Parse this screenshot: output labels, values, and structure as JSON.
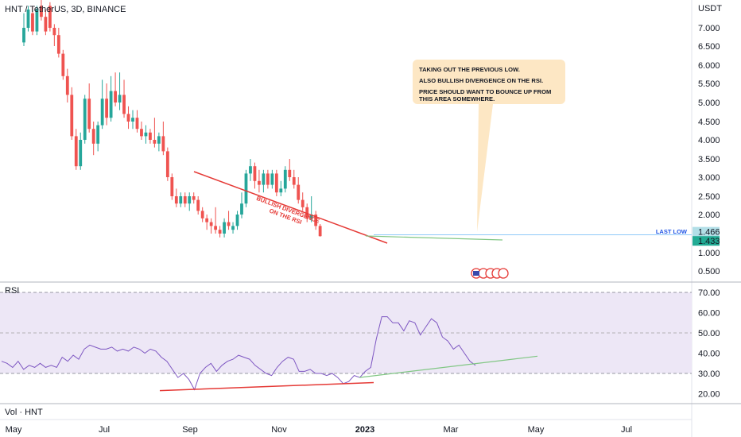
{
  "header": {
    "symbol_line": "HNT / TetherUS, 3D, BINANCE",
    "currency": "USDT"
  },
  "price_axis": {
    "ticks": [
      "7.000",
      "6.500",
      "6.000",
      "5.500",
      "5.000",
      "4.500",
      "4.000",
      "3.500",
      "3.000",
      "2.500",
      "2.000",
      "1.000",
      "0.500"
    ],
    "tags": [
      {
        "value": "1.466",
        "color": "#b2dfe7"
      },
      {
        "value": "1.433",
        "color": "#22ab94"
      }
    ]
  },
  "annotations": {
    "divergence_label": [
      "BULLISH DIVERGENCE",
      "ON THE RSI"
    ],
    "last_low_label": "LAST LOW",
    "callout": [
      "TAKING OUT THE PREVIOUS LOW.",
      "ALSO BULLISH DIVERGENCE ON THE RSI.",
      "PRICE SHOULD WANT TO BOUNCE UP FROM THIS AREA SOMEWHERE."
    ]
  },
  "rsi_panel": {
    "title": "RSI",
    "ticks": [
      "70.00",
      "60.00",
      "50.00",
      "40.00",
      "30.00",
      "20.00"
    ]
  },
  "volume_panel": {
    "title": "Vol · HNT"
  },
  "time_axis": {
    "labels": [
      "May",
      "Jul",
      "Sep",
      "Nov",
      "2023",
      "Mar",
      "May",
      "Jul"
    ]
  },
  "colors": {
    "up": "#26a69a",
    "down": "#ef5350",
    "rsi_line": "#7e57c2",
    "rsi_band": "#ede7f6",
    "divergence_red": "#e53935",
    "divergence_green": "#81c784",
    "last_low_line": "#90caf9",
    "callout_bg": "#fde7c4"
  },
  "chart_data": [
    {
      "type": "candlestick",
      "title": "HNT / TetherUS, 3D, BINANCE",
      "ylabel": "USDT",
      "ylim": [
        0.5,
        7.5
      ],
      "note": "approximate 3-day candles read off the chart",
      "candles": [
        {
          "o": 6.6,
          "h": 7.4,
          "l": 6.5,
          "c": 7.0
        },
        {
          "o": 7.0,
          "h": 7.6,
          "l": 6.9,
          "c": 7.5
        },
        {
          "o": 7.4,
          "h": 7.6,
          "l": 6.8,
          "c": 6.9
        },
        {
          "o": 6.9,
          "h": 7.6,
          "l": 6.8,
          "c": 7.5
        },
        {
          "o": 7.6,
          "h": 7.8,
          "l": 7.2,
          "c": 7.3
        },
        {
          "o": 7.3,
          "h": 7.5,
          "l": 6.8,
          "c": 6.9
        },
        {
          "o": 7.6,
          "h": 7.7,
          "l": 6.9,
          "c": 7.0
        },
        {
          "o": 7.0,
          "h": 7.1,
          "l": 6.5,
          "c": 6.8
        },
        {
          "o": 6.8,
          "h": 7.0,
          "l": 6.2,
          "c": 6.3
        },
        {
          "o": 6.3,
          "h": 6.4,
          "l": 5.6,
          "c": 5.7
        },
        {
          "o": 5.7,
          "h": 5.9,
          "l": 5.0,
          "c": 5.2
        },
        {
          "o": 5.2,
          "h": 5.4,
          "l": 4.0,
          "c": 4.1
        },
        {
          "o": 4.1,
          "h": 4.3,
          "l": 3.2,
          "c": 3.3
        },
        {
          "o": 3.3,
          "h": 4.2,
          "l": 3.2,
          "c": 4.0
        },
        {
          "o": 4.0,
          "h": 5.2,
          "l": 3.9,
          "c": 5.1
        },
        {
          "o": 5.1,
          "h": 5.5,
          "l": 4.2,
          "c": 4.3
        },
        {
          "o": 4.3,
          "h": 4.5,
          "l": 3.6,
          "c": 3.9
        },
        {
          "o": 3.9,
          "h": 4.5,
          "l": 3.7,
          "c": 4.4
        },
        {
          "o": 4.4,
          "h": 5.6,
          "l": 4.3,
          "c": 5.1
        },
        {
          "o": 5.1,
          "h": 5.5,
          "l": 4.4,
          "c": 4.6
        },
        {
          "o": 4.6,
          "h": 5.7,
          "l": 4.5,
          "c": 5.3
        },
        {
          "o": 5.3,
          "h": 5.8,
          "l": 4.9,
          "c": 5.0
        },
        {
          "o": 5.0,
          "h": 5.8,
          "l": 4.8,
          "c": 5.2
        },
        {
          "o": 5.2,
          "h": 5.6,
          "l": 4.6,
          "c": 4.7
        },
        {
          "o": 4.7,
          "h": 4.9,
          "l": 4.3,
          "c": 4.5
        },
        {
          "o": 4.5,
          "h": 4.8,
          "l": 4.3,
          "c": 4.6
        },
        {
          "o": 4.6,
          "h": 4.8,
          "l": 4.2,
          "c": 4.3
        },
        {
          "o": 4.3,
          "h": 4.5,
          "l": 4.0,
          "c": 4.1
        },
        {
          "o": 4.1,
          "h": 4.4,
          "l": 3.9,
          "c": 4.2
        },
        {
          "o": 4.2,
          "h": 4.3,
          "l": 3.9,
          "c": 4.0
        },
        {
          "o": 4.0,
          "h": 4.6,
          "l": 3.8,
          "c": 3.9
        },
        {
          "o": 3.9,
          "h": 4.2,
          "l": 3.7,
          "c": 4.1
        },
        {
          "o": 4.1,
          "h": 4.5,
          "l": 3.6,
          "c": 3.7
        },
        {
          "o": 3.7,
          "h": 3.8,
          "l": 2.9,
          "c": 3.0
        },
        {
          "o": 3.0,
          "h": 3.1,
          "l": 2.4,
          "c": 2.5
        },
        {
          "o": 2.5,
          "h": 2.7,
          "l": 2.2,
          "c": 2.3
        },
        {
          "o": 2.3,
          "h": 2.6,
          "l": 2.2,
          "c": 2.5
        },
        {
          "o": 2.5,
          "h": 2.6,
          "l": 2.2,
          "c": 2.3
        },
        {
          "o": 2.3,
          "h": 2.6,
          "l": 2.1,
          "c": 2.5
        },
        {
          "o": 2.5,
          "h": 2.6,
          "l": 2.3,
          "c": 2.4
        },
        {
          "o": 2.4,
          "h": 2.5,
          "l": 2.0,
          "c": 2.1
        },
        {
          "o": 2.1,
          "h": 2.2,
          "l": 1.8,
          "c": 1.9
        },
        {
          "o": 1.9,
          "h": 2.0,
          "l": 1.6,
          "c": 1.8
        },
        {
          "o": 1.8,
          "h": 1.9,
          "l": 1.5,
          "c": 1.7
        },
        {
          "o": 1.7,
          "h": 2.2,
          "l": 1.5,
          "c": 1.6
        },
        {
          "o": 1.6,
          "h": 1.7,
          "l": 1.4,
          "c": 1.5
        },
        {
          "o": 1.5,
          "h": 1.9,
          "l": 1.4,
          "c": 1.8
        },
        {
          "o": 1.8,
          "h": 2.1,
          "l": 1.6,
          "c": 1.7
        },
        {
          "o": 1.6,
          "h": 1.8,
          "l": 1.5,
          "c": 1.7
        },
        {
          "o": 1.7,
          "h": 2.1,
          "l": 1.6,
          "c": 2.0
        },
        {
          "o": 2.0,
          "h": 2.6,
          "l": 1.9,
          "c": 2.3
        },
        {
          "o": 2.3,
          "h": 3.2,
          "l": 2.2,
          "c": 3.1
        },
        {
          "o": 3.1,
          "h": 3.5,
          "l": 2.9,
          "c": 3.3
        },
        {
          "o": 3.3,
          "h": 3.4,
          "l": 2.7,
          "c": 2.9
        },
        {
          "o": 2.9,
          "h": 3.2,
          "l": 2.6,
          "c": 2.8
        },
        {
          "o": 2.8,
          "h": 3.2,
          "l": 2.6,
          "c": 3.1
        },
        {
          "o": 3.1,
          "h": 3.2,
          "l": 2.7,
          "c": 2.8
        },
        {
          "o": 2.8,
          "h": 3.2,
          "l": 2.7,
          "c": 3.1
        },
        {
          "o": 3.1,
          "h": 3.2,
          "l": 2.5,
          "c": 2.6
        },
        {
          "o": 2.6,
          "h": 2.9,
          "l": 2.5,
          "c": 2.7
        },
        {
          "o": 2.7,
          "h": 3.3,
          "l": 2.6,
          "c": 3.2
        },
        {
          "o": 3.2,
          "h": 3.5,
          "l": 2.9,
          "c": 3.0
        },
        {
          "o": 3.0,
          "h": 3.2,
          "l": 2.7,
          "c": 2.8
        },
        {
          "o": 2.8,
          "h": 3.0,
          "l": 2.3,
          "c": 2.4
        },
        {
          "o": 2.4,
          "h": 2.6,
          "l": 2.1,
          "c": 2.2
        },
        {
          "o": 2.2,
          "h": 2.3,
          "l": 1.8,
          "c": 1.9
        },
        {
          "o": 1.9,
          "h": 2.5,
          "l": 1.8,
          "c": 2.0
        },
        {
          "o": 2.0,
          "h": 2.1,
          "l": 1.6,
          "c": 1.7
        },
        {
          "o": 1.7,
          "h": 1.75,
          "l": 1.42,
          "c": 1.433
        }
      ],
      "horizontal_level": {
        "label": "LAST LOW",
        "value": 1.466
      }
    },
    {
      "type": "line",
      "title": "RSI",
      "ylim": [
        15,
        73
      ],
      "bands": {
        "upper": 70,
        "middle": 50,
        "lower": 30
      },
      "values": [
        36,
        35,
        33,
        36,
        32,
        34,
        33,
        35,
        33,
        34,
        33,
        38,
        36,
        39,
        37,
        42,
        44,
        43,
        42,
        42,
        43,
        41,
        42,
        41,
        43,
        42,
        40,
        42,
        41,
        38,
        36,
        32,
        28,
        30,
        27,
        22,
        30,
        33,
        35,
        31,
        34,
        36,
        37,
        39,
        38,
        37,
        34,
        32,
        30,
        29,
        33,
        36,
        38,
        37,
        31,
        31,
        32,
        30,
        30,
        29,
        30,
        28,
        25,
        26,
        29,
        28,
        31,
        33,
        47,
        58,
        58,
        55,
        55,
        51,
        56,
        55,
        49,
        53,
        57,
        55,
        48,
        46,
        42,
        44,
        40,
        36,
        34
      ],
      "divergence_lines": [
        {
          "color": "red",
          "from": 22,
          "to": 27
        },
        {
          "color": "green",
          "from": 27,
          "to": 38
        }
      ]
    }
  ]
}
